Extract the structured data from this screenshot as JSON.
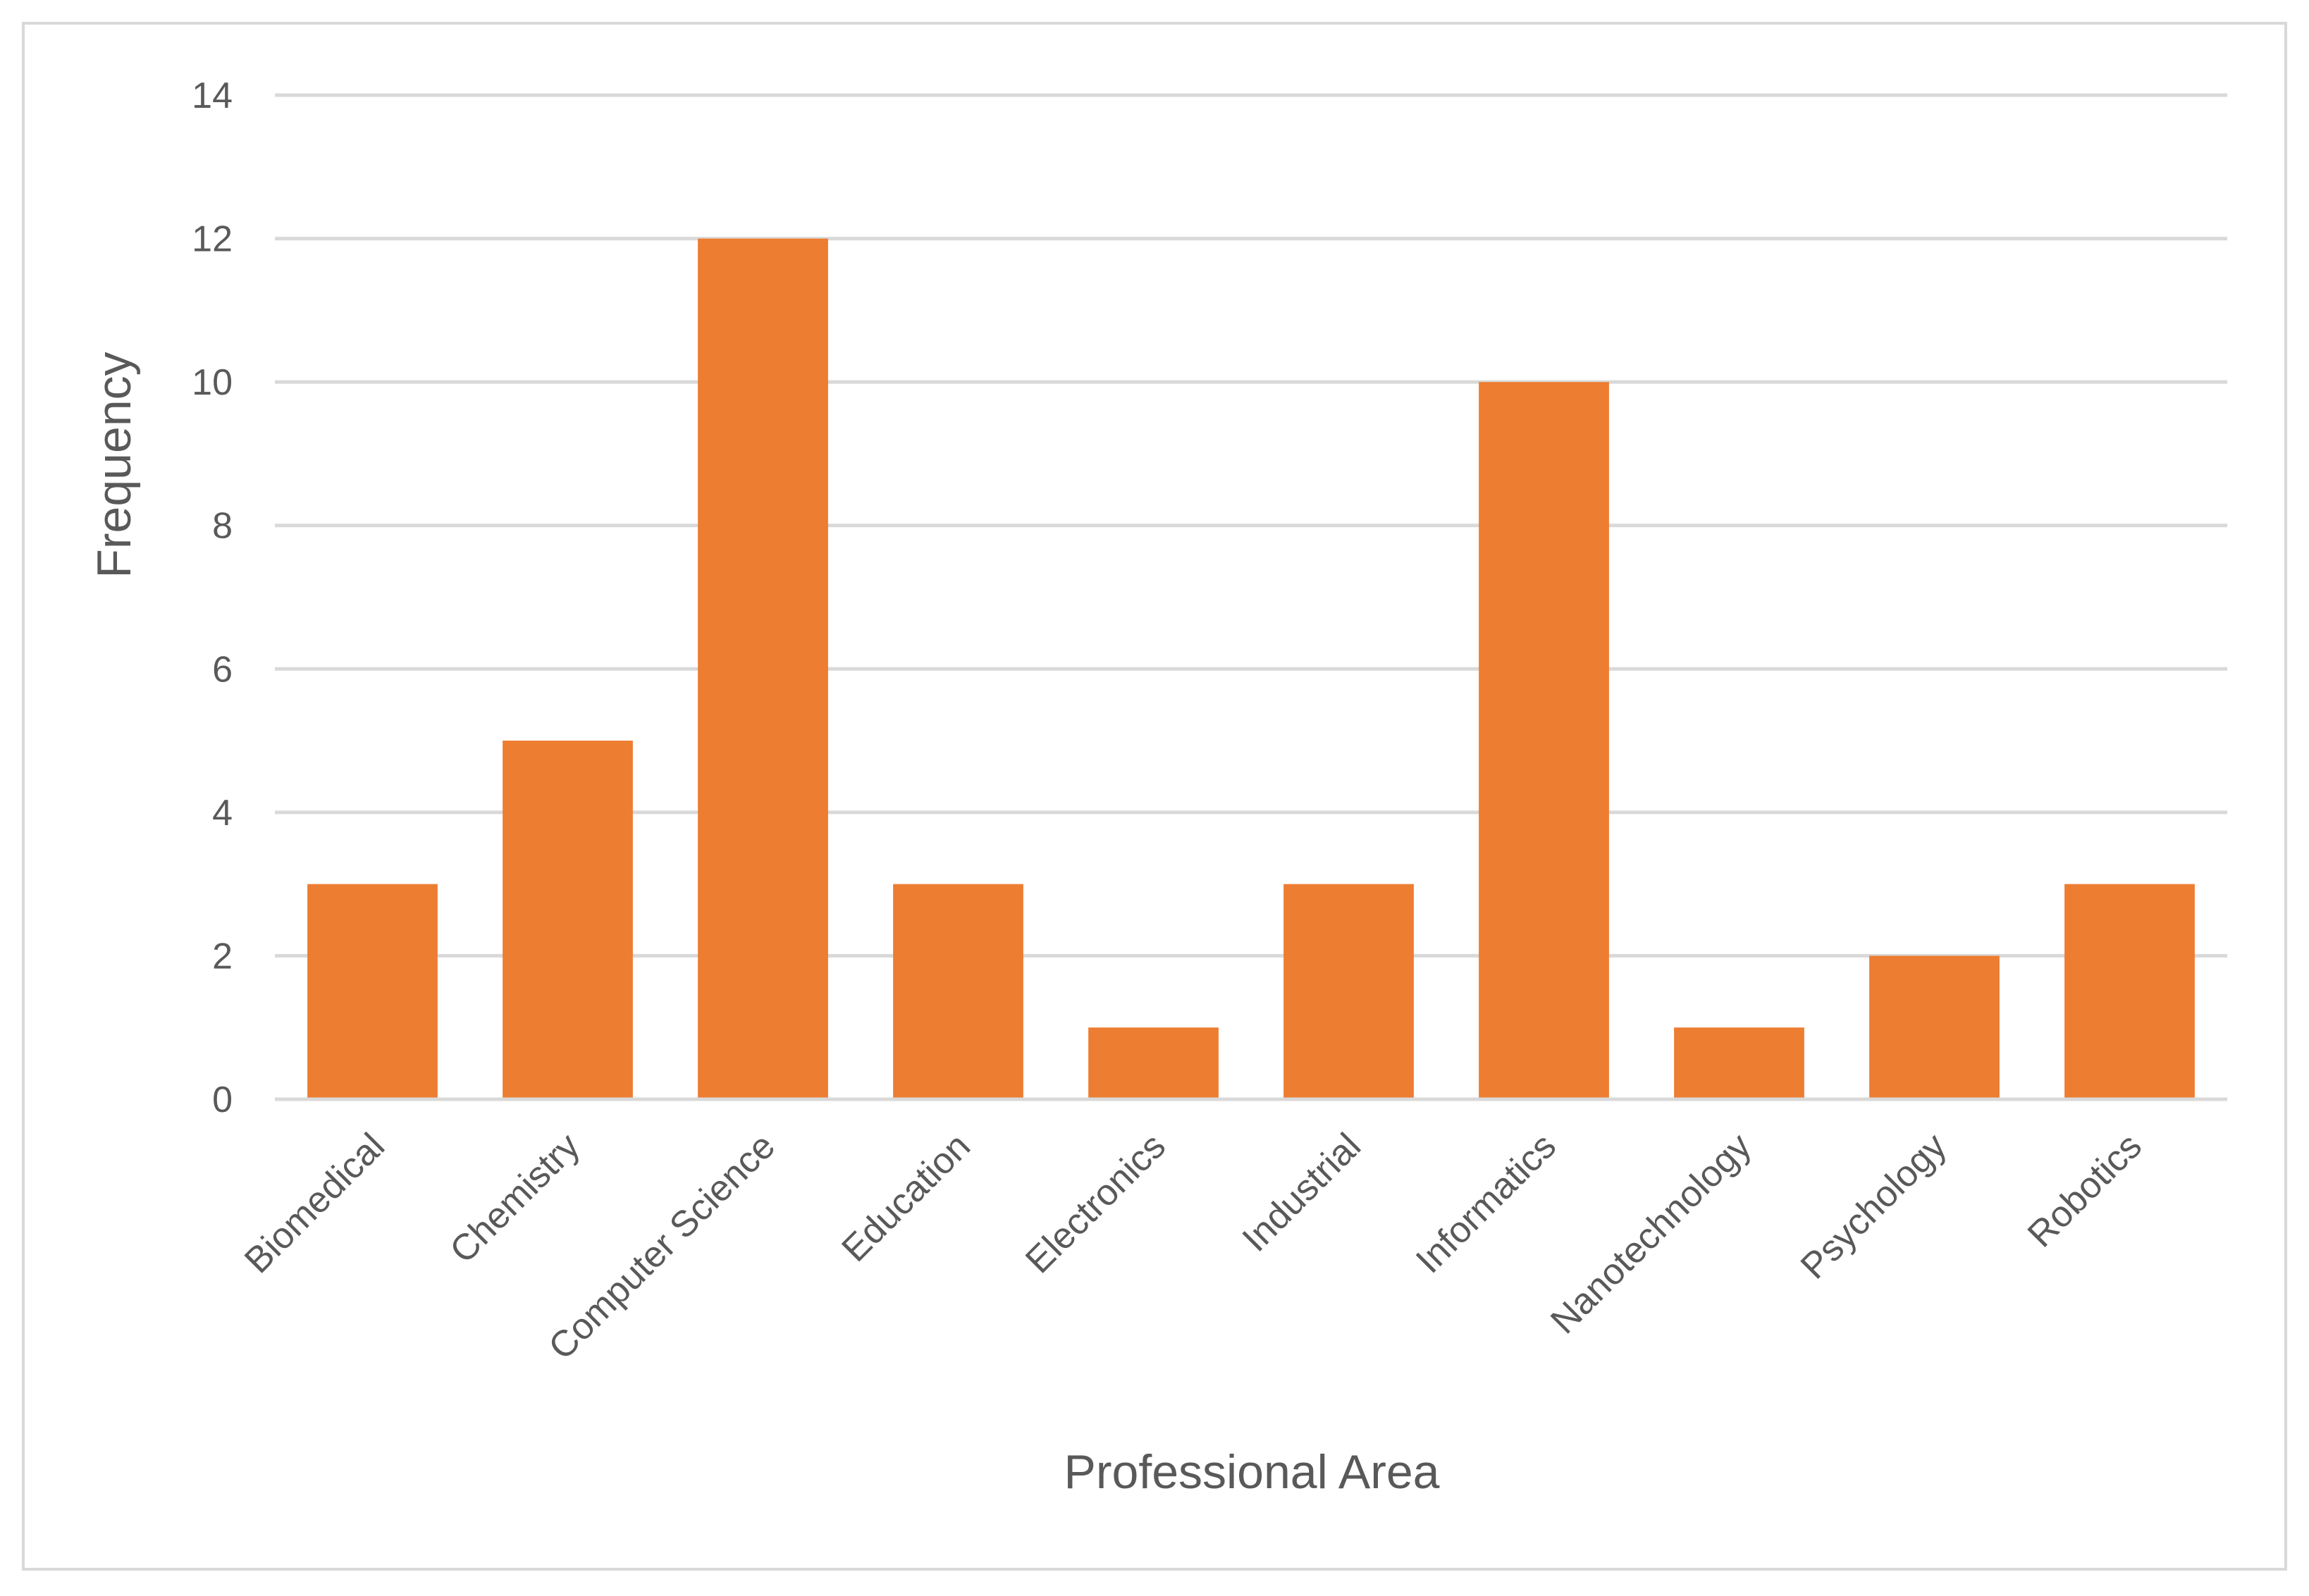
{
  "colors": {
    "bar": "#ED7D31",
    "grid": "#D9D9D9",
    "text": "#595959",
    "border": "#D9D9D9"
  },
  "chart_data": {
    "type": "bar",
    "title": "",
    "xlabel": "Professional Area",
    "ylabel": "Frequency",
    "categories": [
      "Biomedical",
      "Chemistry",
      "Computer Science",
      "Education",
      "Electronics",
      "Industrial",
      "Informatics",
      "Nanotechnology",
      "Psychology",
      "Robotics"
    ],
    "values": [
      3,
      5,
      12,
      3,
      1,
      3,
      10,
      1,
      2,
      3
    ],
    "ylim": [
      0,
      14
    ],
    "yticks": [
      "0",
      "2",
      "4",
      "6",
      "8",
      "10",
      "12",
      "14"
    ],
    "grid": true,
    "legend": "none"
  }
}
